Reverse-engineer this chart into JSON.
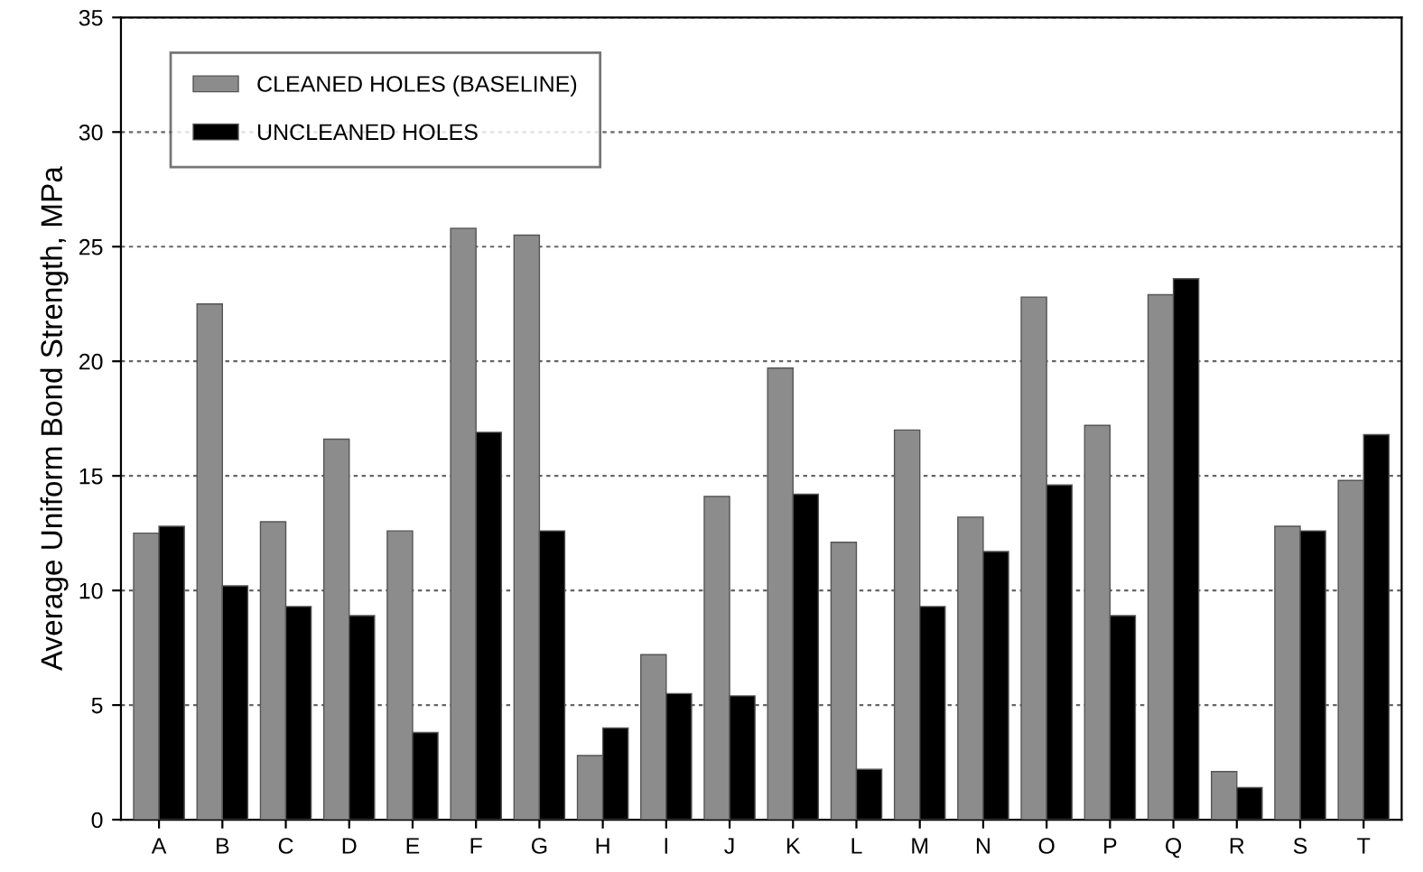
{
  "chart_data": {
    "type": "bar",
    "ylabel": "Average Uniform Bond Strength, MPa",
    "categories": [
      "A",
      "B",
      "C",
      "D",
      "E",
      "F",
      "G",
      "H",
      "I",
      "J",
      "K",
      "L",
      "M",
      "N",
      "O",
      "P",
      "Q",
      "R",
      "S",
      "T"
    ],
    "series": [
      {
        "name": "CLEANED HOLES (BASELINE)",
        "color": "#8c8c8c",
        "values": [
          12.5,
          22.5,
          13.0,
          16.6,
          12.6,
          25.8,
          25.5,
          2.8,
          7.2,
          14.1,
          19.7,
          12.1,
          17.0,
          13.2,
          22.8,
          17.2,
          22.9,
          2.1,
          12.8,
          14.8
        ]
      },
      {
        "name": "UNCLEANED HOLES",
        "color": "#000000",
        "values": [
          12.8,
          10.2,
          9.3,
          8.9,
          3.8,
          16.9,
          12.6,
          4.0,
          5.5,
          5.4,
          14.2,
          2.2,
          9.3,
          11.7,
          14.6,
          8.9,
          23.6,
          1.4,
          12.6,
          16.8
        ]
      }
    ],
    "ylim": [
      0,
      35
    ],
    "yticks": [
      0,
      5,
      10,
      15,
      20,
      25,
      30,
      35
    ],
    "grid": "y",
    "legend": "top left"
  }
}
